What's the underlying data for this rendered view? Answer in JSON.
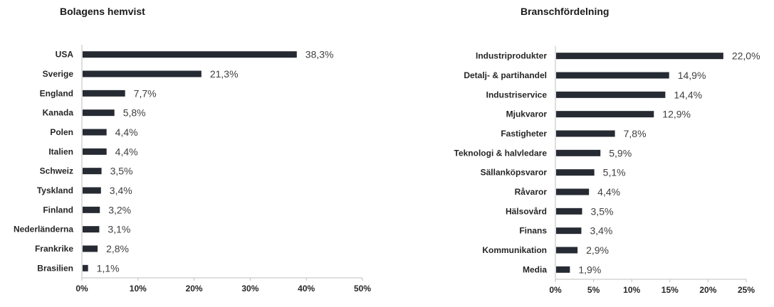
{
  "chart_data": [
    {
      "type": "bar",
      "orientation": "horizontal",
      "title": "Bolagens hemvist",
      "categories": [
        "USA",
        "Sverige",
        "England",
        "Kanada",
        "Polen",
        "Italien",
        "Schweiz",
        "Tyskland",
        "Finland",
        "Nederländerna",
        "Frankrike",
        "Brasilien"
      ],
      "values": [
        38.3,
        21.3,
        7.7,
        5.8,
        4.4,
        4.4,
        3.5,
        3.4,
        3.2,
        3.1,
        2.8,
        1.1
      ],
      "value_labels": [
        "38,3%",
        "21,3%",
        "7,7%",
        "5,8%",
        "4,4%",
        "4,4%",
        "3,5%",
        "3,4%",
        "3,2%",
        "3,1%",
        "2,8%",
        "1,1%"
      ],
      "xlim": [
        0,
        50
      ],
      "xticks": [
        0,
        10,
        20,
        30,
        40,
        50
      ],
      "xtick_labels": [
        "0%",
        "10%",
        "20%",
        "30%",
        "40%",
        "50%"
      ],
      "bar_color": "#262a33",
      "grid": false
    },
    {
      "type": "bar",
      "orientation": "horizontal",
      "title": "Branschfördelning",
      "categories": [
        "Industriprodukter",
        "Detalj- & partihandel",
        "Industriservice",
        "Mjukvaror",
        "Fastigheter",
        "Teknologi & halvledare",
        "Sällanköpsvaror",
        "Råvaror",
        "Hälsovård",
        "Finans",
        "Kommunikation",
        "Media"
      ],
      "values": [
        22.0,
        14.9,
        14.4,
        12.9,
        7.8,
        5.9,
        5.1,
        4.4,
        3.5,
        3.4,
        2.9,
        1.9
      ],
      "value_labels": [
        "22,0%",
        "14,9%",
        "14,4%",
        "12,9%",
        "7,8%",
        "5,9%",
        "5,1%",
        "4,4%",
        "3,5%",
        "3,4%",
        "2,9%",
        "1,9%"
      ],
      "xlim": [
        0,
        25
      ],
      "xticks": [
        0,
        5,
        10,
        15,
        20,
        25
      ],
      "xtick_labels": [
        "0%",
        "5%",
        "10%",
        "15%",
        "20%",
        "25%"
      ],
      "bar_color": "#262a33",
      "grid": false
    }
  ]
}
